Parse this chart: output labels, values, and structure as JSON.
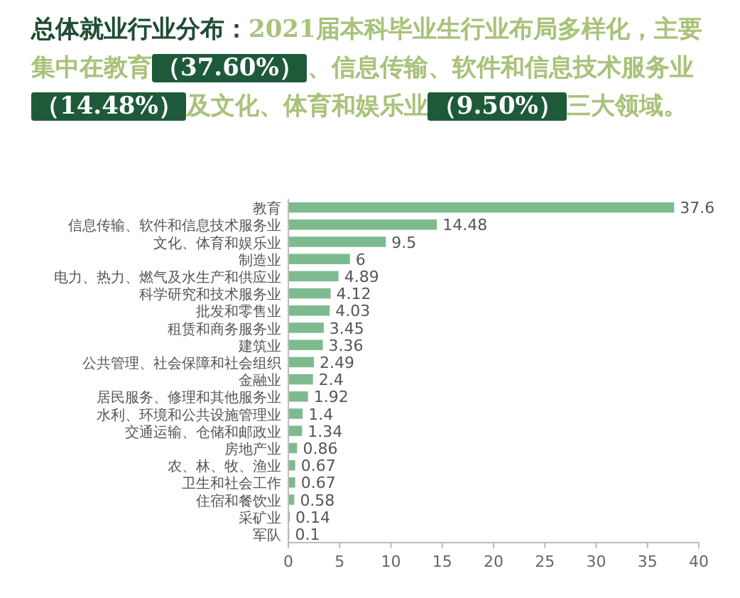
{
  "chart_data": {
    "type": "bar",
    "orientation": "horizontal",
    "title": "总体就业行业分布：2021届本科毕业生行业布局多样化，主要集中在教育（37.60%）、信息传输、软件和信息技术服务业（14.48%）及文化、体育和娱乐业（9.50%）三大领域。",
    "categories": [
      "教育",
      "信息传输、软件和信息技术服务业",
      "文化、体育和娱乐业",
      "制造业",
      "电力、热力、燃气及水生产和供应业",
      "科学研究和技术服务业",
      "批发和零售业",
      "租赁和商务服务业",
      "建筑业",
      "公共管理、社会保障和社会组织",
      "金融业",
      "居民服务、修理和其他服务业",
      "水利、环境和公共设施管理业",
      "交通运输、仓储和邮政业",
      "房地产业",
      "农、林、牧、渔业",
      "卫生和社会工作",
      "住宿和餐饮业",
      "采矿业",
      "军队"
    ],
    "values": [
      37.6,
      14.48,
      9.5,
      6,
      4.89,
      4.12,
      4.03,
      3.45,
      3.36,
      2.49,
      2.4,
      1.92,
      1.4,
      1.34,
      0.86,
      0.67,
      0.67,
      0.58,
      0.14,
      0.1
    ],
    "color": "#7dbb8f",
    "xlim": [
      0,
      40
    ],
    "xticks": [
      0,
      5,
      10,
      15,
      20,
      25,
      30,
      35,
      40
    ],
    "data_labels": true,
    "grid": false
  }
}
